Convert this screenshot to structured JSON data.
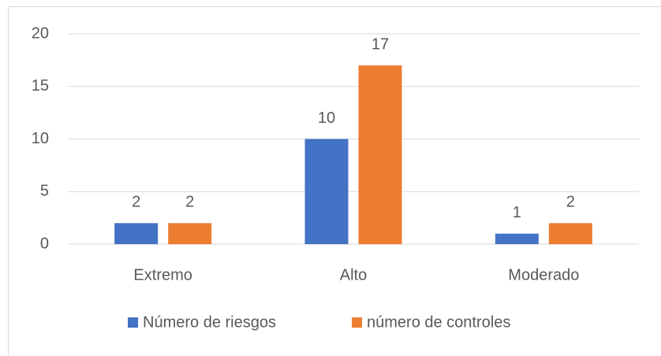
{
  "chart_data": {
    "type": "bar",
    "categories": [
      "Extremo",
      "Alto",
      "Moderado"
    ],
    "series": [
      {
        "name": "Número de riesgos",
        "color": "#4472c4",
        "values": [
          2,
          10,
          1
        ]
      },
      {
        "name": "número de controles",
        "color": "#ed7d31",
        "values": [
          2,
          17,
          2
        ]
      }
    ],
    "ylim": [
      0,
      20
    ],
    "yticks": [
      0,
      5,
      10,
      15,
      20
    ],
    "grid": true,
    "legend": "bottom"
  }
}
